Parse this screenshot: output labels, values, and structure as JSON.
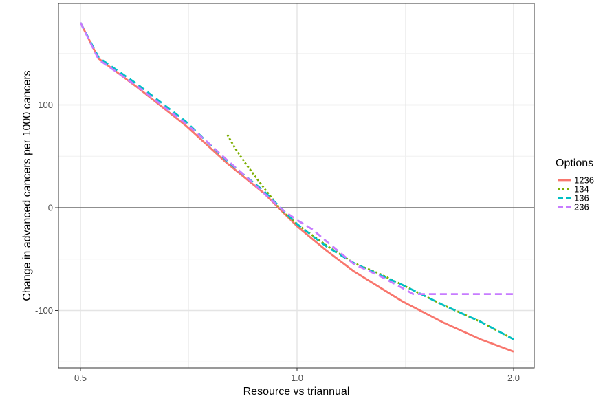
{
  "chart_data": {
    "type": "line",
    "xlabel": "Resource vs triannual",
    "ylabel": "Change in advanced cancers per 1000 cancers",
    "x_scale": "log2",
    "xlim": [
      0.5,
      2.0
    ],
    "ylim": [
      -155,
      185
    ],
    "x_ticks": [
      0.5,
      1.0,
      2.0
    ],
    "x_tick_labels": [
      "0.5",
      "1.0",
      "2.0"
    ],
    "y_ticks": [
      -100,
      0,
      100
    ],
    "y_tick_labels": [
      "-100",
      "0",
      "100"
    ],
    "reference_line_y": 0,
    "grid": true,
    "legend": {
      "title": "Options",
      "position": "right"
    },
    "series": [
      {
        "name": "1236",
        "color": "#F8766D",
        "dash": "solid",
        "x": [
          0.5,
          0.53,
          0.6,
          0.7,
          0.8,
          0.9,
          1.0,
          1.1,
          1.2,
          1.4,
          1.6,
          1.8,
          2.0
        ],
        "y": [
          180,
          145,
          117,
          80,
          43,
          14,
          -18,
          -42,
          -62,
          -91,
          -112,
          -128,
          -140
        ]
      },
      {
        "name": "134",
        "color": "#7CAE00",
        "dash": "dotted",
        "x": [
          0.8,
          0.82,
          0.85,
          0.9,
          0.95,
          1.0,
          1.1,
          1.2,
          1.3,
          1.4,
          1.6,
          1.8,
          2.0
        ],
        "y": [
          71,
          58,
          42,
          19,
          -2,
          -16,
          -37,
          -54,
          -64,
          -75,
          -95,
          -111,
          -128
        ]
      },
      {
        "name": "136",
        "color": "#00BFC4",
        "dash": "dashed",
        "x": [
          0.5,
          0.53,
          0.6,
          0.7,
          0.8,
          0.9,
          1.0,
          1.1,
          1.2,
          1.3,
          1.4,
          1.6,
          1.8,
          2.0
        ],
        "y": [
          180,
          146,
          120,
          84,
          45,
          16,
          -16,
          -38,
          -54,
          -65,
          -75,
          -95,
          -111,
          -128
        ]
      },
      {
        "name": "236",
        "color": "#C77CFF",
        "dash": "dashed",
        "x": [
          0.5,
          0.53,
          0.6,
          0.7,
          0.75,
          0.8,
          0.85,
          0.9,
          0.95,
          1.0,
          1.05,
          1.1,
          1.2,
          1.3,
          1.4,
          1.45,
          1.6,
          1.8,
          2.0
        ],
        "y": [
          180,
          144,
          118,
          82,
          64,
          46,
          30,
          14,
          -1,
          -12,
          -21,
          -33,
          -55,
          -66,
          -78,
          -84,
          -84,
          -84,
          -84
        ]
      }
    ]
  }
}
